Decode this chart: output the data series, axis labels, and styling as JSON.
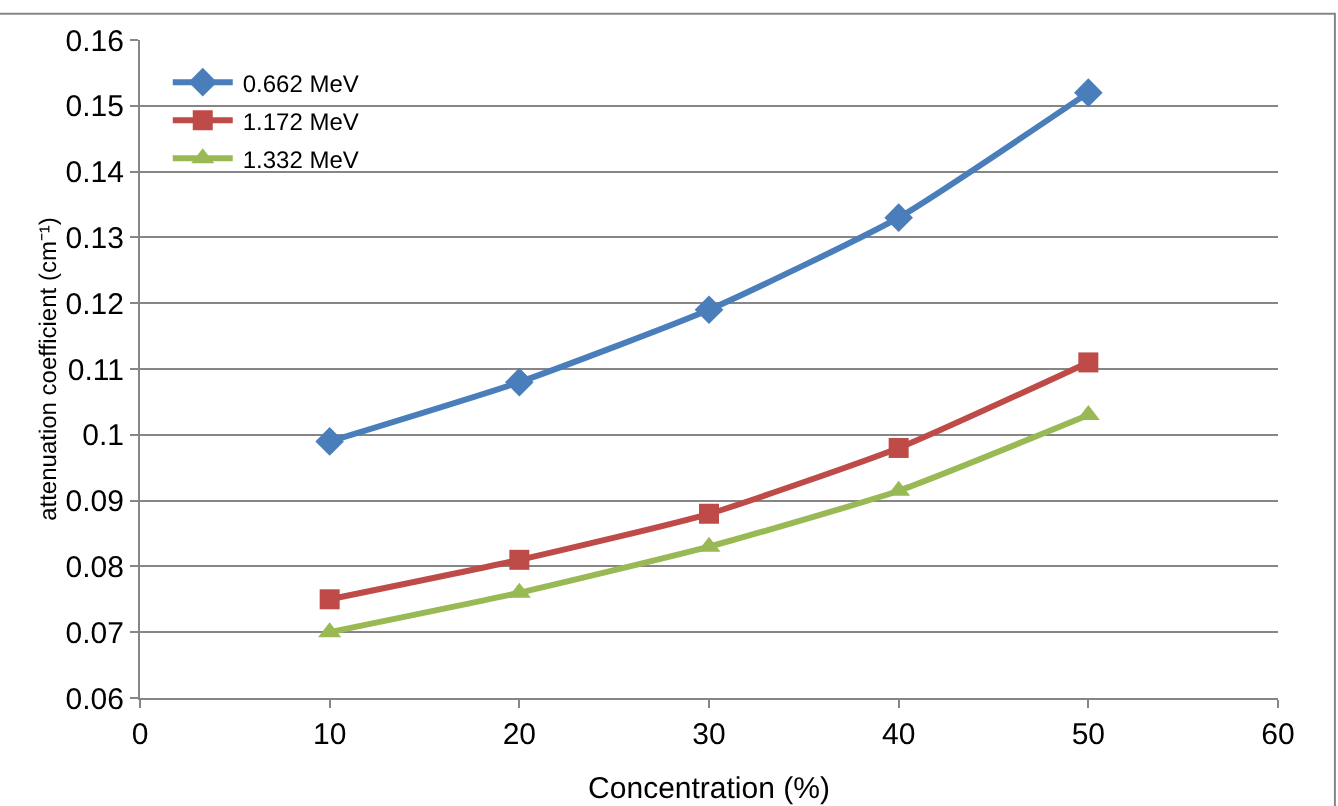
{
  "chart_data": {
    "type": "line",
    "xlabel": "Concentration (%)",
    "ylabel": "attenuation coefficient (cm⁻¹)",
    "x": [
      10,
      20,
      30,
      40,
      50
    ],
    "series": [
      {
        "name": "0.662 MeV",
        "color": "#4a7ebb",
        "marker": "diamond",
        "values": [
          0.099,
          0.108,
          0.119,
          0.133,
          0.152
        ]
      },
      {
        "name": "1.172 MeV",
        "color": "#be4b48",
        "marker": "square",
        "values": [
          0.075,
          0.081,
          0.088,
          0.098,
          0.111
        ]
      },
      {
        "name": "1.332 MeV",
        "color": "#98b954",
        "marker": "triangle",
        "values": [
          0.07,
          0.076,
          0.083,
          0.0915,
          0.103
        ]
      }
    ],
    "xlim": [
      0,
      60
    ],
    "xticks": [
      0,
      10,
      20,
      30,
      40,
      50,
      60
    ],
    "ylim": [
      0.06,
      0.16
    ],
    "yticks": [
      0.06,
      0.07,
      0.08,
      0.09,
      0.1,
      0.11,
      0.12,
      0.13,
      0.14,
      0.15,
      0.16
    ],
    "grid": "y",
    "legend": "top left",
    "line_style": "solid"
  }
}
